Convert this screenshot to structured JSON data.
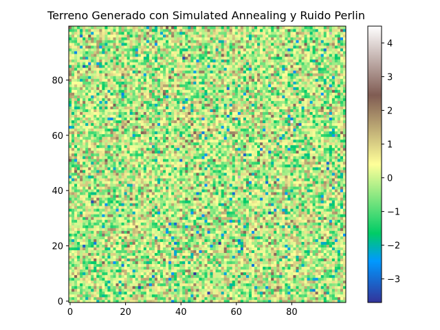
{
  "chart_data": {
    "type": "heatmap",
    "title": "Terreno Generado con Simulated Annealing y Ruido Perlin",
    "xlabel": "",
    "ylabel": "",
    "grid_size": [
      100,
      100
    ],
    "xlim": [
      -0.5,
      99.5
    ],
    "ylim": [
      -0.5,
      99.5
    ],
    "x_ticks": [
      0,
      20,
      40,
      60,
      80
    ],
    "y_ticks": [
      0,
      20,
      40,
      60,
      80
    ],
    "origin": "lower",
    "colormap": "terrain",
    "value_range": [
      -3.7,
      4.5
    ],
    "colorbar_ticks": [
      -3,
      -2,
      -1,
      0,
      1,
      2,
      3,
      4
    ],
    "value_distribution": {
      "mean": 0.0,
      "std": 1.0,
      "pattern": "random noise (approx. standard normal)"
    },
    "colorbar_position": "right",
    "grid": false
  },
  "colormap_stops": [
    {
      "v": 0.0,
      "color": "#333399"
    },
    {
      "v": 0.15,
      "color": "#0099ff"
    },
    {
      "v": 0.25,
      "color": "#00cc66"
    },
    {
      "v": 0.5,
      "color": "#ffff99"
    },
    {
      "v": 0.75,
      "color": "#805c53"
    },
    {
      "v": 1.0,
      "color": "#ffffff"
    }
  ]
}
